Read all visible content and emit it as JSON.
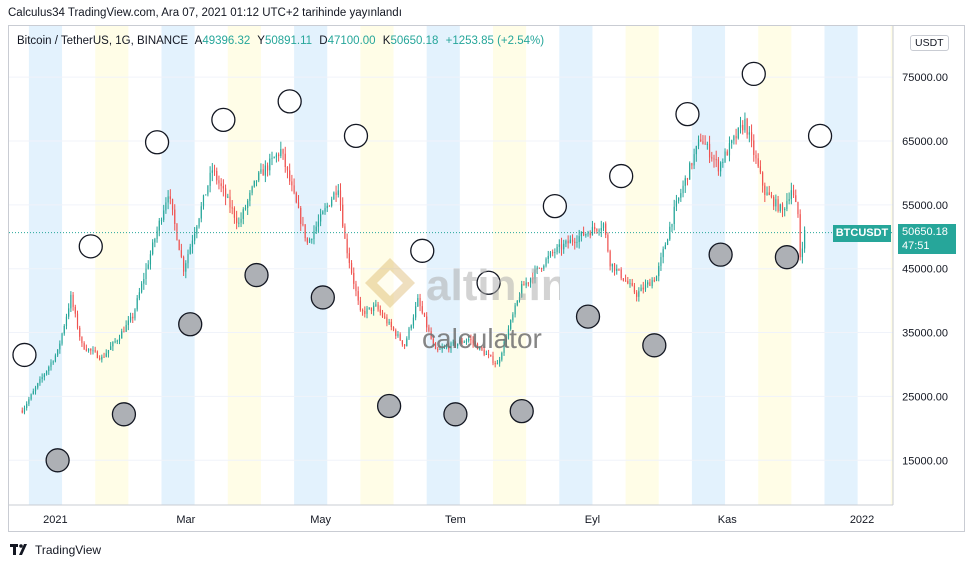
{
  "header": {
    "published_text": "Calculus34 TradingView.com, Ara 07, 2021 01:12 UTC+2 tarihinde yayınlandı"
  },
  "legend": {
    "symbol_text": "Bitcoin / TetherUS, 1G, BINANCE",
    "open_key": "A",
    "open_value": "49396.32",
    "high_key": "Y",
    "high_value": "50891.11",
    "low_key": "D",
    "low_value": "47100.00",
    "close_key": "K",
    "close_value": "50650.18",
    "change_value": "+1253.85 (+2.54%)"
  },
  "unit_badge": "USDT",
  "price_label": {
    "symbol": "BTCUSDT",
    "price": "50650.18",
    "countdown": "47:51"
  },
  "watermark": {
    "brand": "altin.in",
    "sub": "calculator"
  },
  "footer": {
    "brand": "TradingView"
  },
  "colors": {
    "up": "#26a69a",
    "down": "#ef5350",
    "band_blue": "#e3f2fd",
    "band_cream": "#fffde7"
  },
  "chart_data": {
    "type": "candlestick",
    "title": "",
    "ylim": [
      8000,
      83000
    ],
    "y_ticks": [
      15000,
      25000,
      35000,
      45000,
      55000,
      65000,
      75000
    ],
    "y_tick_labels": [
      "15000.00",
      "25000.00",
      "35000.00",
      "45000.00",
      "55000.00",
      "65000.00",
      "75000.00"
    ],
    "x_tick_labels": [
      {
        "label": "2021",
        "date": "2021-01-01"
      },
      {
        "label": "Mar",
        "date": "2021-03-01"
      },
      {
        "label": "May",
        "date": "2021-05-01"
      },
      {
        "label": "Tem",
        "date": "2021-07-01"
      },
      {
        "label": "Eyl",
        "date": "2021-09-01"
      },
      {
        "label": "Kas",
        "date": "2021-11-01"
      },
      {
        "label": "2022",
        "date": "2022-01-01"
      }
    ],
    "price_path": [
      [
        "2020-12-17",
        22800
      ],
      [
        "2021-01-02",
        32000
      ],
      [
        "2021-01-08",
        40500
      ],
      [
        "2021-01-13",
        33000
      ],
      [
        "2021-01-22",
        31000
      ],
      [
        "2021-01-29",
        34000
      ],
      [
        "2021-02-05",
        37500
      ],
      [
        "2021-02-14",
        48500
      ],
      [
        "2021-02-21",
        57000
      ],
      [
        "2021-02-28",
        45000
      ],
      [
        "2021-03-13",
        60500
      ],
      [
        "2021-03-25",
        52000
      ],
      [
        "2021-04-02",
        59000
      ],
      [
        "2021-04-13",
        63500
      ],
      [
        "2021-04-25",
        49000
      ],
      [
        "2021-05-09",
        58000
      ],
      [
        "2021-05-12",
        49500
      ],
      [
        "2021-05-19",
        38000
      ],
      [
        "2021-05-26",
        39000
      ],
      [
        "2021-06-08",
        33000
      ],
      [
        "2021-06-14",
        40000
      ],
      [
        "2021-06-22",
        32000
      ],
      [
        "2021-07-07",
        34000
      ],
      [
        "2021-07-20",
        30000
      ],
      [
        "2021-07-31",
        42000
      ],
      [
        "2021-08-14",
        47500
      ],
      [
        "2021-08-23",
        49500
      ],
      [
        "2021-09-06",
        52000
      ],
      [
        "2021-09-09",
        46000
      ],
      [
        "2021-09-21",
        41000
      ],
      [
        "2021-09-30",
        43800
      ],
      [
        "2021-10-08",
        54000
      ],
      [
        "2021-10-20",
        65500
      ],
      [
        "2021-10-28",
        61000
      ],
      [
        "2021-11-09",
        68000
      ],
      [
        "2021-11-18",
        57000
      ],
      [
        "2021-11-26",
        54000
      ],
      [
        "2021-11-30",
        57500
      ],
      [
        "2021-12-03",
        53500
      ],
      [
        "2021-12-04",
        47000
      ],
      [
        "2021-12-06",
        50650
      ]
    ],
    "last_price": 50650.18,
    "time_cycle_bands": {
      "period_days": 30,
      "first_band_start": "2020-12-20",
      "band_days": 15,
      "color_pattern": [
        "blue",
        "cream"
      ]
    },
    "markers": [
      {
        "date": "2020-12-18",
        "price": 31500,
        "style": "hollow"
      },
      {
        "date": "2021-01-02",
        "price": 15000,
        "style": "filled"
      },
      {
        "date": "2021-01-17",
        "price": 48500,
        "style": "hollow"
      },
      {
        "date": "2021-02-01",
        "price": 22200,
        "style": "filled"
      },
      {
        "date": "2021-02-16",
        "price": 64800,
        "style": "hollow"
      },
      {
        "date": "2021-03-03",
        "price": 36300,
        "style": "filled"
      },
      {
        "date": "2021-03-18",
        "price": 68300,
        "style": "hollow"
      },
      {
        "date": "2021-04-02",
        "price": 44000,
        "style": "filled"
      },
      {
        "date": "2021-04-17",
        "price": 71200,
        "style": "hollow"
      },
      {
        "date": "2021-05-02",
        "price": 40500,
        "style": "filled"
      },
      {
        "date": "2021-05-17",
        "price": 65800,
        "style": "hollow"
      },
      {
        "date": "2021-06-01",
        "price": 23500,
        "style": "filled"
      },
      {
        "date": "2021-06-16",
        "price": 47800,
        "style": "hollow"
      },
      {
        "date": "2021-07-01",
        "price": 22200,
        "style": "filled"
      },
      {
        "date": "2021-07-16",
        "price": 42800,
        "style": "hollow"
      },
      {
        "date": "2021-07-31",
        "price": 22700,
        "style": "filled"
      },
      {
        "date": "2021-08-15",
        "price": 54800,
        "style": "hollow"
      },
      {
        "date": "2021-08-30",
        "price": 37500,
        "style": "filled"
      },
      {
        "date": "2021-09-14",
        "price": 59500,
        "style": "hollow"
      },
      {
        "date": "2021-09-29",
        "price": 33000,
        "style": "filled"
      },
      {
        "date": "2021-10-14",
        "price": 69200,
        "style": "hollow"
      },
      {
        "date": "2021-10-29",
        "price": 47200,
        "style": "filled"
      },
      {
        "date": "2021-11-13",
        "price": 75500,
        "style": "hollow"
      },
      {
        "date": "2021-11-28",
        "price": 46800,
        "style": "filled"
      },
      {
        "date": "2021-12-13",
        "price": 65800,
        "style": "hollow"
      }
    ]
  }
}
